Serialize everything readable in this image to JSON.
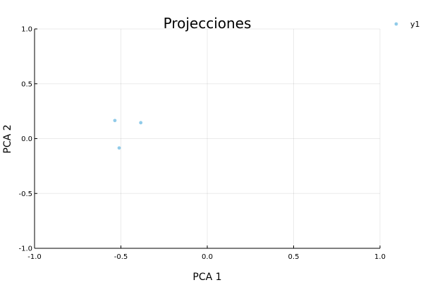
{
  "chart_data": {
    "type": "scatter",
    "title": "Projecciones",
    "xlabel": "PCA 1",
    "ylabel": "PCA 2",
    "xlim": [
      -1.0,
      1.0
    ],
    "ylim": [
      -1.0,
      1.0
    ],
    "xticks": [
      -1.0,
      -0.5,
      0.0,
      0.5,
      1.0
    ],
    "yticks": [
      -1.0,
      -0.5,
      0.0,
      0.5,
      1.0
    ],
    "xtick_labels": [
      "-1.0",
      "-0.5",
      "0.0",
      "0.5",
      "1.0"
    ],
    "ytick_labels": [
      "-1.0",
      "-0.5",
      "0.0",
      "0.5",
      "1.0"
    ],
    "grid": true,
    "legend_position": "top-right, outside plot",
    "series": [
      {
        "name": "y1",
        "color": "#91cbe9",
        "points": [
          {
            "x": -0.535,
            "y": 0.165
          },
          {
            "x": -0.385,
            "y": 0.145
          },
          {
            "x": -0.51,
            "y": -0.085
          }
        ]
      }
    ]
  }
}
